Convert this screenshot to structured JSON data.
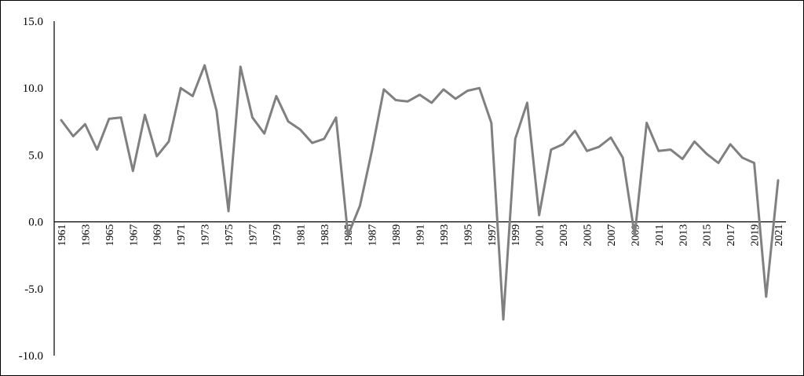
{
  "chart_data": {
    "type": "line",
    "title": "",
    "xlabel": "",
    "ylabel": "",
    "ylim": [
      -10,
      15
    ],
    "yticks": [
      15,
      10,
      5,
      0,
      -5,
      -10
    ],
    "ytick_labels": [
      "15.0",
      "10.0",
      "5.0",
      "0.0",
      "-5.0",
      "-10.0"
    ],
    "x": [
      1961,
      1962,
      1963,
      1964,
      1965,
      1966,
      1967,
      1968,
      1969,
      1970,
      1971,
      1972,
      1973,
      1974,
      1975,
      1976,
      1977,
      1978,
      1979,
      1980,
      1981,
      1982,
      1983,
      1984,
      1985,
      1986,
      1987,
      1988,
      1989,
      1990,
      1991,
      1992,
      1993,
      1994,
      1995,
      1996,
      1997,
      1998,
      1999,
      2000,
      2001,
      2002,
      2003,
      2004,
      2005,
      2006,
      2007,
      2008,
      2009,
      2010,
      2011,
      2012,
      2013,
      2014,
      2015,
      2016,
      2017,
      2018,
      2019,
      2020,
      2021
    ],
    "xtick_labels": [
      "1961",
      "1963",
      "1965",
      "1967",
      "1969",
      "1971",
      "1973",
      "1975",
      "1977",
      "1979",
      "1981",
      "1983",
      "1985",
      "1987",
      "1989",
      "1991",
      "1993",
      "1995",
      "1997",
      "1999",
      "2001",
      "2003",
      "2005",
      "2007",
      "2009",
      "2011",
      "2013",
      "2015",
      "2017",
      "2019",
      "2021"
    ],
    "series": [
      {
        "color": "#808080",
        "values": [
          7.6,
          6.4,
          7.3,
          5.4,
          7.7,
          7.8,
          3.8,
          8.0,
          4.9,
          6.0,
          10.0,
          9.4,
          11.7,
          8.3,
          0.8,
          11.6,
          7.8,
          6.6,
          9.4,
          7.5,
          6.9,
          5.9,
          6.2,
          7.8,
          -1.0,
          1.2,
          5.3,
          9.9,
          9.1,
          9.0,
          9.5,
          8.9,
          9.9,
          9.2,
          9.8,
          10.0,
          7.4,
          -7.3,
          6.2,
          8.9,
          0.5,
          5.4,
          5.8,
          6.8,
          5.3,
          5.6,
          6.3,
          4.8,
          -1.0,
          7.4,
          5.3,
          5.4,
          4.7,
          6.0,
          5.1,
          4.4,
          5.8,
          4.8,
          4.4,
          -5.6,
          3.1
        ]
      }
    ],
    "grid": false,
    "legend": "none"
  }
}
